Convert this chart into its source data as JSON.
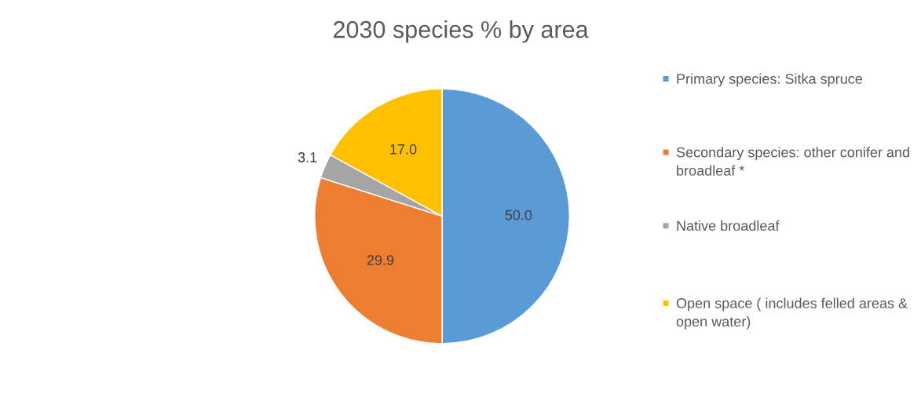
{
  "chart_data": {
    "type": "pie",
    "title": "2030 species % by area",
    "categories": [
      "Primary species: Sitka spruce",
      "Secondary species: other conifer and broadleaf *",
      "Native broadleaf",
      "Open space ( includes felled areas & open water)"
    ],
    "values": [
      50.0,
      29.9,
      3.1,
      17.0
    ],
    "colors": [
      "#5b9bd5",
      "#ed7d31",
      "#a5a5a5",
      "#ffc000"
    ],
    "value_labels": [
      "50.0",
      "29.9",
      "3.1",
      "17.0"
    ],
    "legend": "right"
  }
}
